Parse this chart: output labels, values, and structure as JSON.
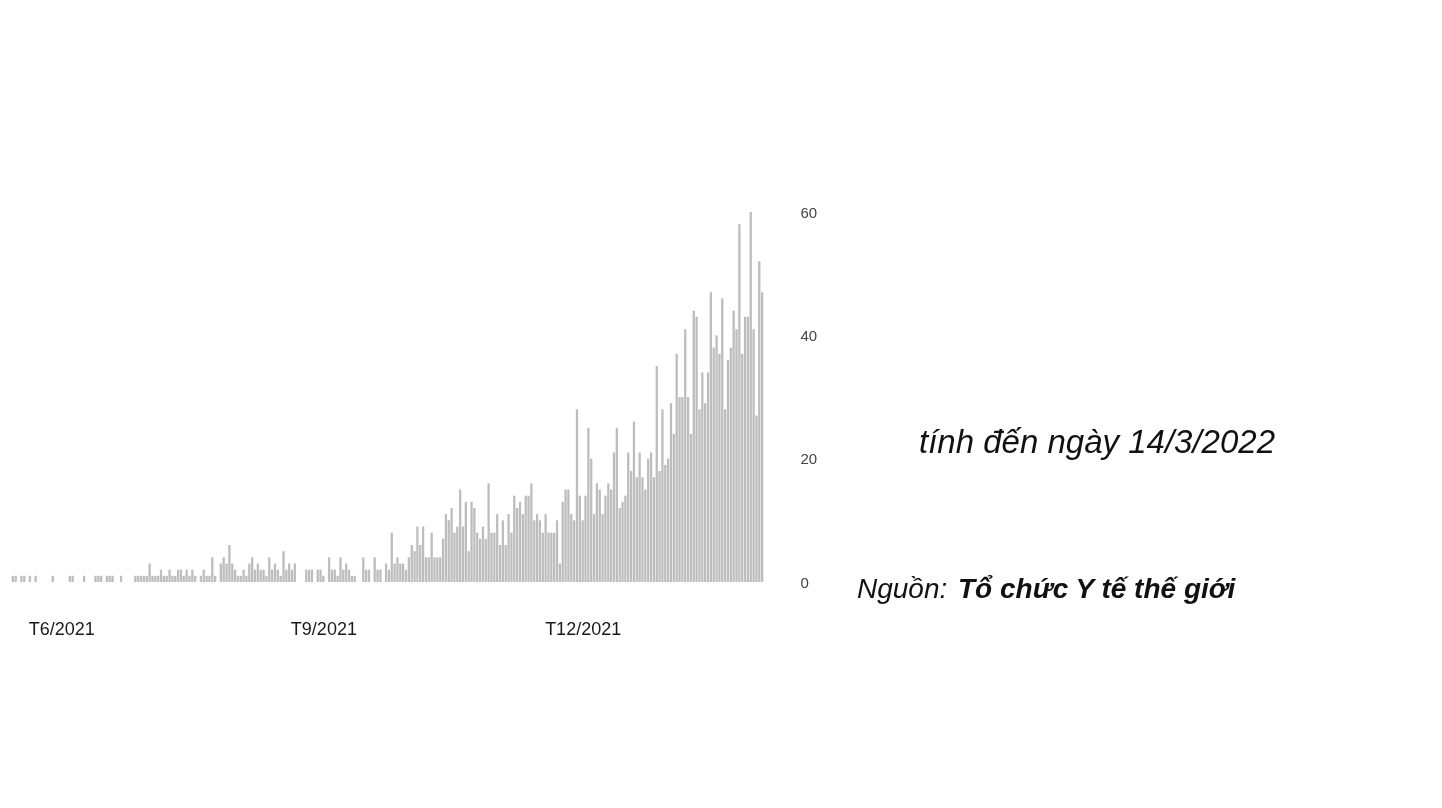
{
  "chart_data": {
    "type": "bar",
    "color": "#bdbdbd",
    "x": [
      "2021-05-15",
      "2021-05-16",
      "2021-05-17",
      "2021-05-18",
      "2021-05-19",
      "2021-05-20",
      "2021-05-21",
      "2021-05-22",
      "2021-05-23",
      "2021-05-24",
      "2021-05-25",
      "2021-05-26",
      "2021-05-27",
      "2021-05-28",
      "2021-05-29",
      "2021-05-30",
      "2021-05-31",
      "2021-06-01",
      "2021-06-02",
      "2021-06-03",
      "2021-06-04",
      "2021-06-05",
      "2021-06-06",
      "2021-06-07",
      "2021-06-08",
      "2021-06-09",
      "2021-06-10",
      "2021-06-11",
      "2021-06-12",
      "2021-06-13",
      "2021-06-14",
      "2021-06-15",
      "2021-06-16",
      "2021-06-17",
      "2021-06-18",
      "2021-06-19",
      "2021-06-20",
      "2021-06-21",
      "2021-06-22",
      "2021-06-23",
      "2021-06-24",
      "2021-06-25",
      "2021-06-26",
      "2021-06-27",
      "2021-06-28",
      "2021-06-29",
      "2021-06-30",
      "2021-07-01",
      "2021-07-02",
      "2021-07-03",
      "2021-07-04",
      "2021-07-05",
      "2021-07-06",
      "2021-07-07",
      "2021-07-08",
      "2021-07-09",
      "2021-07-10",
      "2021-07-11",
      "2021-07-12",
      "2021-07-13",
      "2021-07-14",
      "2021-07-15",
      "2021-07-16",
      "2021-07-17",
      "2021-07-18",
      "2021-07-19",
      "2021-07-20",
      "2021-07-21",
      "2021-07-22",
      "2021-07-23",
      "2021-07-24",
      "2021-07-25",
      "2021-07-26",
      "2021-07-27",
      "2021-07-28",
      "2021-07-29",
      "2021-07-30",
      "2021-07-31",
      "2021-08-01",
      "2021-08-02",
      "2021-08-03",
      "2021-08-04",
      "2021-08-05",
      "2021-08-06",
      "2021-08-07",
      "2021-08-08",
      "2021-08-09",
      "2021-08-10",
      "2021-08-11",
      "2021-08-12",
      "2021-08-13",
      "2021-08-14",
      "2021-08-15",
      "2021-08-16",
      "2021-08-17",
      "2021-08-18",
      "2021-08-19",
      "2021-08-20",
      "2021-08-21",
      "2021-08-22",
      "2021-08-23",
      "2021-08-24",
      "2021-08-25",
      "2021-08-26",
      "2021-08-27",
      "2021-08-28",
      "2021-08-29",
      "2021-08-30",
      "2021-08-31",
      "2021-09-01",
      "2021-09-02",
      "2021-09-03",
      "2021-09-04",
      "2021-09-05",
      "2021-09-06",
      "2021-09-07",
      "2021-09-08",
      "2021-09-09",
      "2021-09-10",
      "2021-09-11",
      "2021-09-12",
      "2021-09-13",
      "2021-09-14",
      "2021-09-15",
      "2021-09-16",
      "2021-09-17",
      "2021-09-18",
      "2021-09-19",
      "2021-09-20",
      "2021-09-21",
      "2021-09-22",
      "2021-09-23",
      "2021-09-24",
      "2021-09-25",
      "2021-09-26",
      "2021-09-27",
      "2021-09-28",
      "2021-09-29",
      "2021-09-30",
      "2021-10-01",
      "2021-10-02",
      "2021-10-03",
      "2021-10-04",
      "2021-10-05",
      "2021-10-06",
      "2021-10-07",
      "2021-10-08",
      "2021-10-09",
      "2021-10-10",
      "2021-10-11",
      "2021-10-12",
      "2021-10-13",
      "2021-10-14",
      "2021-10-15",
      "2021-10-16",
      "2021-10-17",
      "2021-10-18",
      "2021-10-19",
      "2021-10-20",
      "2021-10-21",
      "2021-10-22",
      "2021-10-23",
      "2021-10-24",
      "2021-10-25",
      "2021-10-26",
      "2021-10-27",
      "2021-10-28",
      "2021-10-29",
      "2021-10-30",
      "2021-10-31",
      "2021-11-01",
      "2021-11-02",
      "2021-11-03",
      "2021-11-04",
      "2021-11-05",
      "2021-11-06",
      "2021-11-07",
      "2021-11-08",
      "2021-11-09",
      "2021-11-10",
      "2021-11-11",
      "2021-11-12",
      "2021-11-13",
      "2021-11-14",
      "2021-11-15",
      "2021-11-16",
      "2021-11-17",
      "2021-11-18",
      "2021-11-19",
      "2021-11-20",
      "2021-11-21",
      "2021-11-22",
      "2021-11-23",
      "2021-11-24",
      "2021-11-25",
      "2021-11-26",
      "2021-11-27",
      "2021-11-28",
      "2021-11-29",
      "2021-11-30",
      "2021-12-01",
      "2021-12-02",
      "2021-12-03",
      "2021-12-04",
      "2021-12-05",
      "2021-12-06",
      "2021-12-07",
      "2021-12-08",
      "2021-12-09",
      "2021-12-10",
      "2021-12-11",
      "2021-12-12",
      "2021-12-13",
      "2021-12-14",
      "2021-12-15",
      "2021-12-16",
      "2021-12-17",
      "2021-12-18",
      "2021-12-19",
      "2021-12-20",
      "2021-12-21",
      "2021-12-22",
      "2021-12-23",
      "2021-12-24",
      "2021-12-25",
      "2021-12-26",
      "2021-12-27",
      "2021-12-28",
      "2021-12-29",
      "2021-12-30",
      "2021-12-31",
      "2022-01-01",
      "2022-01-02",
      "2022-01-03",
      "2022-01-04",
      "2022-01-05",
      "2022-01-06",
      "2022-01-07",
      "2022-01-08",
      "2022-01-09",
      "2022-01-10",
      "2022-01-11",
      "2022-01-12",
      "2022-01-13",
      "2022-01-14",
      "2022-01-15",
      "2022-01-16",
      "2022-01-17",
      "2022-01-18",
      "2022-01-19",
      "2022-01-20",
      "2022-01-21",
      "2022-01-22",
      "2022-01-23",
      "2022-01-24",
      "2022-01-25",
      "2022-01-26",
      "2022-01-27",
      "2022-01-28",
      "2022-01-29",
      "2022-01-30",
      "2022-01-31",
      "2022-02-01",
      "2022-02-02"
    ],
    "values": [
      1,
      1,
      null,
      1,
      1,
      null,
      1,
      null,
      1,
      null,
      null,
      null,
      null,
      null,
      1,
      null,
      null,
      null,
      null,
      null,
      1,
      1,
      null,
      null,
      null,
      1,
      null,
      null,
      null,
      1,
      1,
      1,
      null,
      1,
      1,
      1,
      null,
      null,
      1,
      null,
      null,
      null,
      null,
      1,
      1,
      1,
      1,
      1,
      3,
      1,
      1,
      1,
      2,
      1,
      1,
      2,
      1,
      1,
      2,
      2,
      1,
      2,
      1,
      2,
      1,
      null,
      1,
      2,
      1,
      1,
      4,
      1,
      null,
      3,
      4,
      3,
      6,
      3,
      2,
      1,
      1,
      2,
      1,
      3,
      4,
      2,
      3,
      2,
      2,
      1,
      4,
      2,
      3,
      2,
      1,
      5,
      2,
      3,
      2,
      3,
      null,
      null,
      null,
      2,
      2,
      2,
      null,
      2,
      2,
      1,
      null,
      4,
      2,
      2,
      1,
      4,
      2,
      3,
      2,
      1,
      1,
      null,
      null,
      4,
      2,
      2,
      null,
      4,
      2,
      2,
      null,
      3,
      2,
      8,
      3,
      4,
      3,
      3,
      2,
      4,
      6,
      5,
      9,
      6,
      9,
      4,
      4,
      8,
      4,
      4,
      4,
      7,
      11,
      10,
      12,
      8,
      9,
      15,
      9,
      13,
      5,
      13,
      12,
      8,
      7,
      9,
      7,
      16,
      8,
      8,
      11,
      6,
      10,
      6,
      11,
      8,
      14,
      12,
      13,
      11,
      14,
      14,
      16,
      10,
      11,
      10,
      8,
      11,
      8,
      8,
      8,
      10,
      3,
      13,
      15,
      15,
      11,
      10,
      28,
      14,
      10,
      14,
      25,
      20,
      11,
      16,
      15,
      11,
      14,
      16,
      15,
      21,
      25,
      12,
      13,
      14,
      21,
      18,
      26,
      17,
      21,
      17,
      15,
      20,
      21,
      17,
      35,
      18,
      28,
      19,
      20,
      29,
      24,
      37,
      30,
      30,
      41,
      30,
      24,
      44,
      43,
      28,
      34,
      29,
      34,
      47,
      38,
      40,
      37,
      46,
      28,
      36,
      38,
      44,
      41,
      58,
      37,
      43,
      43,
      60,
      41,
      27,
      52,
      47
    ],
    "xlim": [
      "2021-05-14",
      "2022-02-03"
    ],
    "xticks": [
      {
        "value": "2021-06-01",
        "label": "T6/2021"
      },
      {
        "value": "2021-09-01",
        "label": "T9/2021"
      },
      {
        "value": "2021-12-01",
        "label": "T12/2021"
      }
    ],
    "ylim": [
      0,
      60
    ],
    "yticks": [
      0,
      20,
      40,
      60
    ],
    "annotations": [
      "tính đến ngày 14/3/2022",
      "Nguồn:",
      "Tổ chức Y tế thế giới"
    ]
  }
}
